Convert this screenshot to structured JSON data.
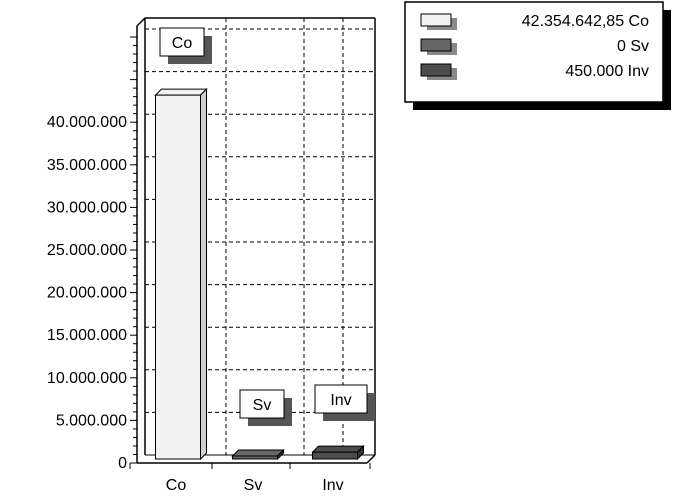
{
  "chart_data": {
    "type": "bar",
    "categories": [
      "Co",
      "Sv",
      "Inv"
    ],
    "values": [
      42354642.85,
      0,
      450000
    ],
    "ylim": [
      0,
      50000000
    ],
    "yticks": [
      "0",
      "5.000.000",
      "10.000.000",
      "15.000.000",
      "20.000.000",
      "25.000.000",
      "30.000.000",
      "35.000.000",
      "40.000.000"
    ],
    "bar_labels": [
      "Co",
      "Sv",
      "Inv"
    ],
    "grid": true,
    "legend_position": "top-right",
    "legend": [
      {
        "text": "42.354.642,85 Co",
        "color": "#f2f2f2"
      },
      {
        "text": "0 Sv",
        "color": "#666666"
      },
      {
        "text": "450.000 Inv",
        "color": "#4d4d4d"
      }
    ],
    "bar_colors": [
      "#f2f2f2",
      "#666666",
      "#4d4d4d"
    ]
  }
}
